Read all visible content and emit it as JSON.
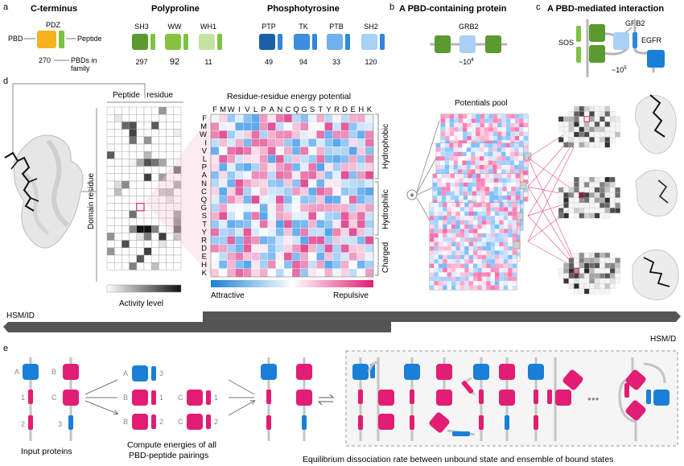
{
  "panel_letters": {
    "a": "a",
    "b": "b",
    "c": "c",
    "d": "d",
    "e": "e"
  },
  "a": {
    "cterm_title": "C-terminus",
    "poly_title": "Polyproline",
    "phos_title": "Phosphotyrosine",
    "pdz": "PDZ",
    "pbd_label": "PBD",
    "peptide_label": "Peptide",
    "pdz_count": "270",
    "family_label_1": "PBDs in",
    "family_label_2": "family",
    "domains": [
      {
        "name": "SH3",
        "count": "297",
        "color": "#5a9a2e"
      },
      {
        "name": "WW",
        "count": "92",
        "color": "#86c440"
      },
      {
        "name": "WH1",
        "count": "11",
        "color": "#c3e3a3"
      },
      {
        "name": "PTP",
        "count": "49",
        "color": "#1b5fa8"
      },
      {
        "name": "TK",
        "count": "94",
        "color": "#3d8ee0"
      },
      {
        "name": "PTB",
        "count": "33",
        "color": "#6fb0ee"
      },
      {
        "name": "SH2",
        "count": "120",
        "color": "#a9d0f5"
      }
    ],
    "peptide_color": "#7dc242",
    "peptide_color_b": "#2e86de",
    "pdz_color": "#f6b21e"
  },
  "b": {
    "title": "A PBD-containing protein",
    "protein": "GRB2",
    "count": "~10",
    "sup": "4"
  },
  "c": {
    "title": "A PBD-mediated interaction",
    "sos": "SOS",
    "grb2": "GRB2",
    "egfr": "EGFR",
    "count": "~10",
    "sup": "5"
  },
  "d": {
    "peptide_residue": "Peptide   residue",
    "domain_residue": "Domain residue",
    "activity_level": "Activity level",
    "matrix_title": "Residue-residue energy potential",
    "residues": [
      "F",
      "M",
      "W",
      "I",
      "V",
      "L",
      "P",
      "A",
      "N",
      "C",
      "Q",
      "G",
      "S",
      "T",
      "Y",
      "R",
      "D",
      "E",
      "H",
      "K"
    ],
    "groups": [
      "Hydrophobic",
      "Hydrophilic",
      "Charged"
    ],
    "attractive": "Attractive",
    "repulsive": "Repulsive",
    "pool_title": "Potentials pool",
    "plus": "+"
  },
  "hsm": {
    "id": "HSM/ID",
    "d": "HSM/D"
  },
  "e": {
    "labels": {
      "A": "A",
      "B": "B",
      "C": "C",
      "n1": "1",
      "n2": "2",
      "n3": "3"
    },
    "input_proteins": "Input proteins",
    "compute_1": "Compute energies of all",
    "compute_2": "PBD-peptide pairings",
    "equilibrium": "Equilibrium dissociation rate between unbound state and ensemble of bound states",
    "dots": "●●●",
    "pink": "#e11d74",
    "blue": "#1a7fd6"
  }
}
